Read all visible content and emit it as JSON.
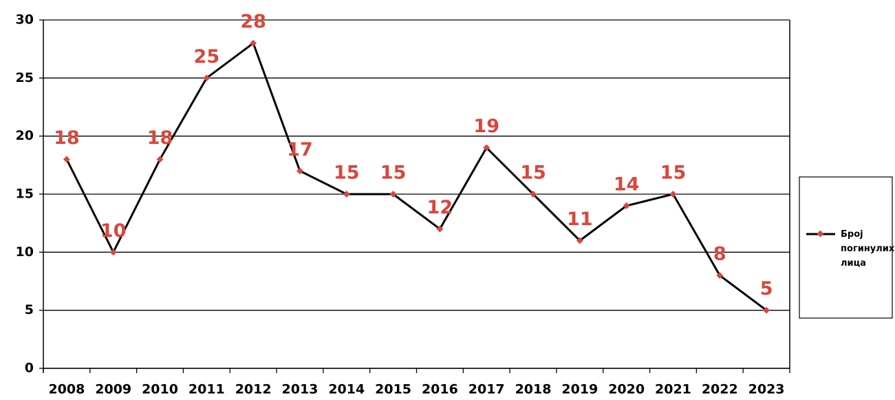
{
  "chart_data": {
    "type": "line",
    "categories": [
      "2008",
      "2009",
      "2010",
      "2011",
      "2012",
      "2013",
      "2014",
      "2015",
      "2016",
      "2017",
      "2018",
      "2019",
      "2020",
      "2021",
      "2022",
      "2023"
    ],
    "series": [
      {
        "name": "Број погинулих лица",
        "color": "#000000",
        "marker_color": "#d9463b",
        "values": [
          18,
          10,
          18,
          25,
          28,
          17,
          15,
          15,
          12,
          19,
          15,
          11,
          14,
          15,
          8,
          5
        ]
      }
    ],
    "ylim": [
      0,
      30
    ],
    "yticks": [
      0,
      5,
      10,
      15,
      20,
      25,
      30
    ],
    "grid": true,
    "legend": "right",
    "data_labels": true,
    "label_color": "#d9463b"
  }
}
